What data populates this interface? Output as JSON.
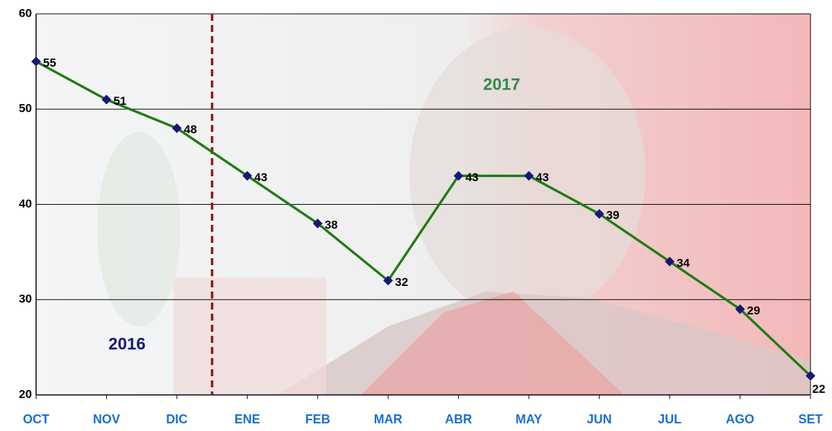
{
  "chart_data": {
    "type": "line",
    "categories": [
      "OCT",
      "NOV",
      "DIC",
      "ENE",
      "FEB",
      "MAR",
      "ABR",
      "MAY",
      "JUN",
      "JUL",
      "AGO",
      "SET"
    ],
    "values": [
      55,
      51,
      48,
      43,
      38,
      32,
      43,
      43,
      39,
      34,
      29,
      22
    ],
    "color": "#1e7d12",
    "marker_color": "#17177a",
    "ylim": [
      20,
      60
    ],
    "yticks": [
      20,
      30,
      40,
      50,
      60
    ],
    "grid": true,
    "annotations": [
      {
        "text": "2016",
        "color": "#17177a"
      },
      {
        "text": "2017",
        "color": "#2e8b4a"
      }
    ]
  }
}
